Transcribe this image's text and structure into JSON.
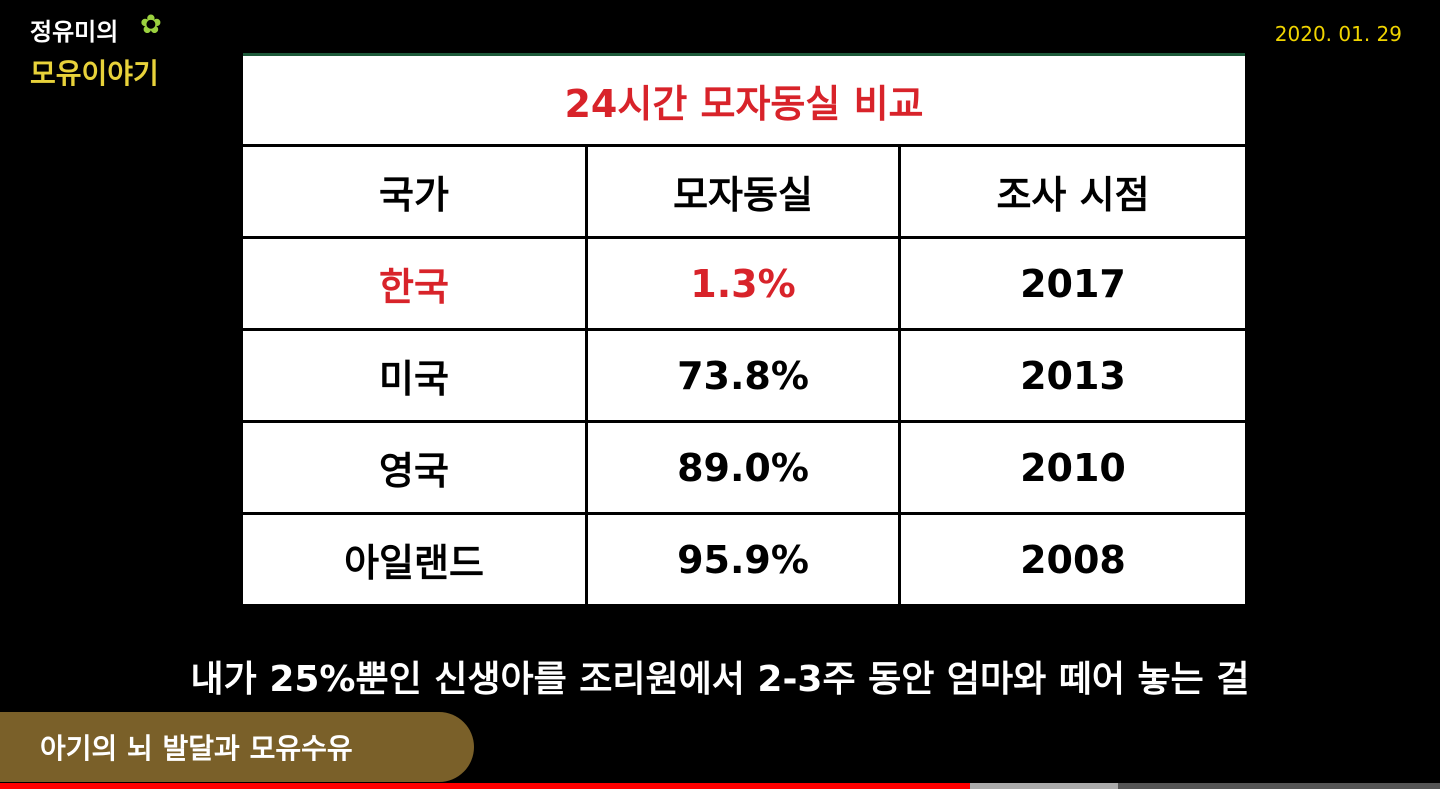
{
  "logo": {
    "line1": "정유미의",
    "line2": "모유이야기"
  },
  "date": "2020. 01. 29",
  "table": {
    "title": "24시간 모자동실 비교",
    "header": [
      "국가",
      "모자동실",
      "조사 시점"
    ],
    "rows": [
      [
        "한국",
        "1.3%",
        "2017"
      ],
      [
        "미국",
        "73.8%",
        "2013"
      ],
      [
        "영국",
        "89.0%",
        "2010"
      ],
      [
        "아일랜드",
        "95.9%",
        "2008"
      ]
    ]
  },
  "subtitle": "내가 25%뿐인 신생아를 조리원에서 2-3주 동안 엄마와 떼어 놓는 걸",
  "chapter": "아기의 뇌 발달과 모유수유"
}
